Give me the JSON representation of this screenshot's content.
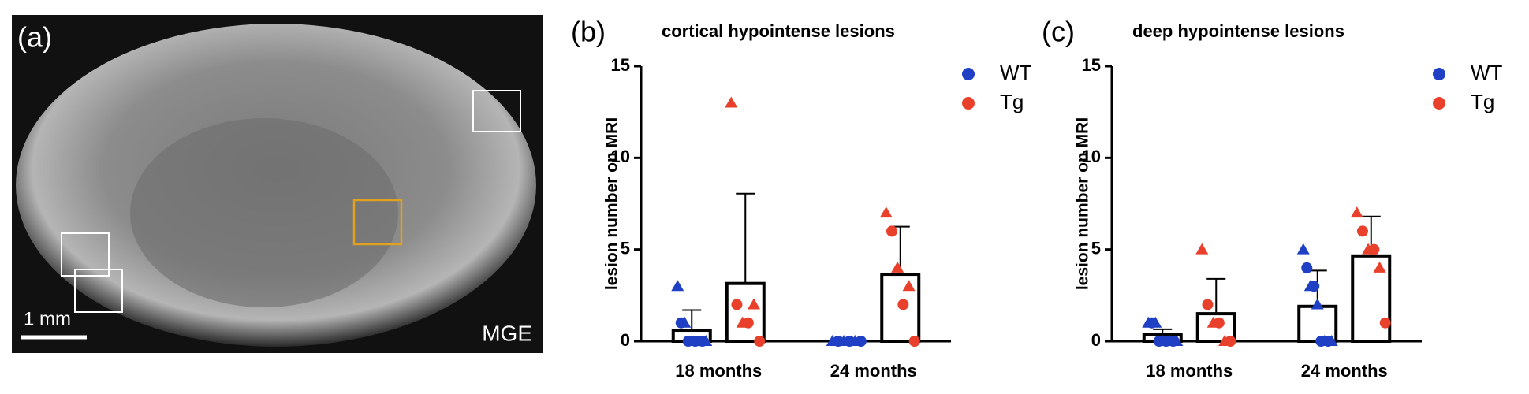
{
  "panel_a": {
    "panel_label": "(a)",
    "scale_bar": "1 mm",
    "sequence": "MGE"
  },
  "chart_data": [
    {
      "type": "bar",
      "panel_label": "(b)",
      "title": "cortical hypointense lesions",
      "y_label": "lesion number on MRI",
      "categories": [
        "18 months",
        "24 months"
      ],
      "ylim": [
        0,
        15
      ],
      "yticks": [
        0,
        5,
        10,
        15
      ],
      "series": [
        {
          "name": "WT",
          "color": "#1f3fc4",
          "values": [
            0.6,
            0
          ],
          "errors": [
            1.1,
            0
          ],
          "points": [
            [
              3,
              1,
              1,
              0,
              0,
              0,
              0,
              0,
              0
            ],
            [
              0,
              0,
              0,
              0,
              0,
              0
            ]
          ]
        },
        {
          "name": "Tg",
          "color": "#e8402a",
          "values": [
            3.15,
            3.65
          ],
          "errors": [
            4.9,
            2.6
          ],
          "points": [
            [
              13,
              2,
              1,
              1,
              2,
              0
            ],
            [
              7,
              6,
              4,
              2,
              3,
              0
            ]
          ]
        }
      ]
    },
    {
      "type": "bar",
      "panel_label": "(c)",
      "title": "deep hypointense lesions",
      "y_label": "lesion number on MRI",
      "categories": [
        "18 months",
        "24 months"
      ],
      "ylim": [
        0,
        15
      ],
      "yticks": [
        0,
        5,
        10,
        15
      ],
      "series": [
        {
          "name": "WT",
          "color": "#1f3fc4",
          "values": [
            0.35,
            1.9
          ],
          "errors": [
            0.3,
            1.95
          ],
          "points": [
            [
              1,
              1,
              1,
              0,
              0,
              0,
              0,
              0,
              0
            ],
            [
              5,
              4,
              3,
              3,
              2,
              0,
              0,
              0,
              0
            ]
          ]
        },
        {
          "name": "Tg",
          "color": "#e8402a",
          "values": [
            1.5,
            4.65
          ],
          "errors": [
            1.9,
            2.15
          ],
          "points": [
            [
              5,
              2,
              1,
              1,
              0,
              0
            ],
            [
              7,
              6,
              5,
              5,
              4,
              1
            ]
          ]
        }
      ]
    }
  ]
}
